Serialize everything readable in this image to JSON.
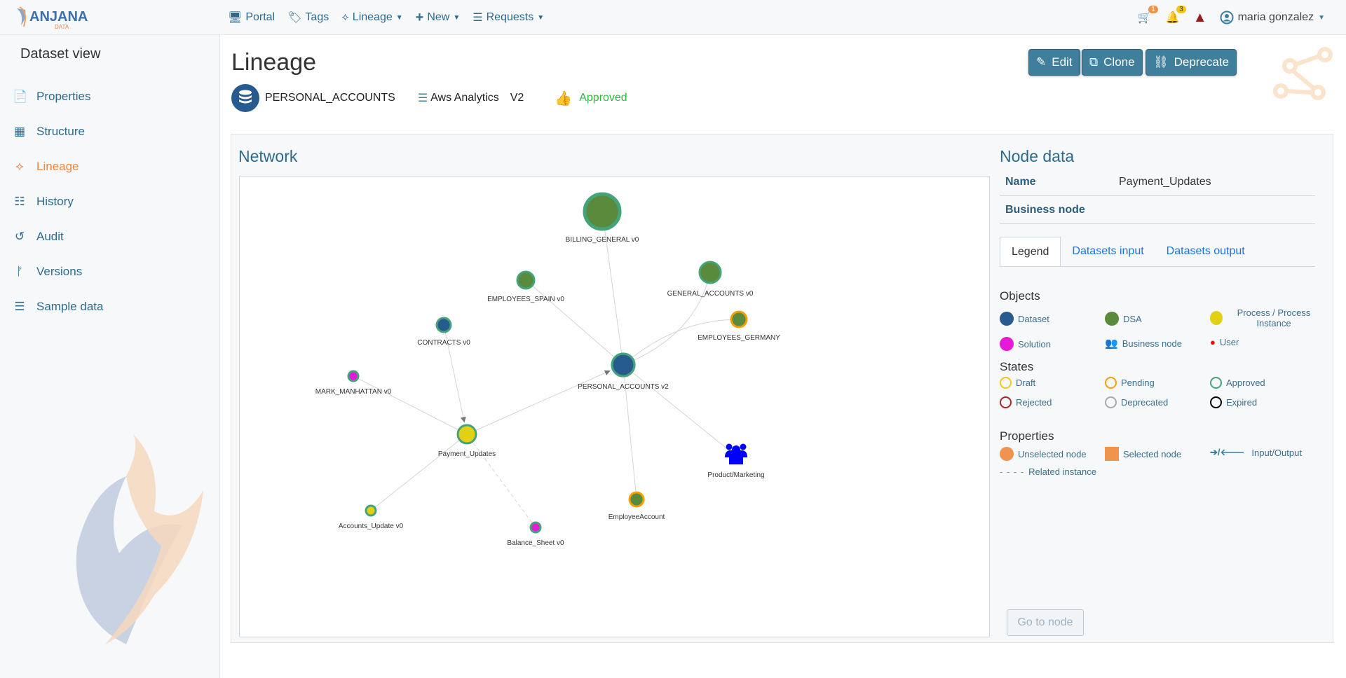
{
  "header": {
    "logo_text": "ANJANA DATA",
    "nav": [
      {
        "label": "Portal",
        "icon": "monitor-icon"
      },
      {
        "label": "Tags",
        "icon": "tags-icon"
      },
      {
        "label": "Lineage",
        "icon": "lineage-icon",
        "dropdown": true
      },
      {
        "label": "New",
        "icon": "plus-icon",
        "dropdown": true
      },
      {
        "label": "Requests",
        "icon": "requests-icon",
        "dropdown": true
      }
    ],
    "cart_count": "1",
    "notifications_count": "3",
    "user_name": "maria gonzalez"
  },
  "sidebar": {
    "title": "Dataset view",
    "items": [
      {
        "label": "Properties",
        "icon": "file-icon"
      },
      {
        "label": "Structure",
        "icon": "table-icon"
      },
      {
        "label": "Lineage",
        "icon": "lineage-icon",
        "active": true
      },
      {
        "label": "History",
        "icon": "list-icon"
      },
      {
        "label": "Audit",
        "icon": "history-icon"
      },
      {
        "label": "Versions",
        "icon": "branch-icon"
      },
      {
        "label": "Sample data",
        "icon": "list-numbered-icon"
      }
    ]
  },
  "page": {
    "title": "Lineage",
    "dataset_name": "PERSONAL_ACCOUNTS",
    "datasource": "Aws Analytics",
    "version": "V2",
    "status": "Approved",
    "buttons": {
      "edit": "Edit",
      "clone": "Clone",
      "deprecate": "Deprecate"
    }
  },
  "network": {
    "title": "Network",
    "nodes": [
      {
        "label": "BILLING_GENERAL v0",
        "type": "DSA",
        "state": "Approved"
      },
      {
        "label": "EMPLOYEES_SPAIN v0",
        "type": "DSA",
        "state": "Approved"
      },
      {
        "label": "GENERAL_ACCOUNTS v0",
        "type": "DSA",
        "state": "Approved"
      },
      {
        "label": "EMPLOYEES_GERMANY",
        "type": "DSA",
        "state": "Pending"
      },
      {
        "label": "CONTRACTS v0",
        "type": "Dataset",
        "state": "Approved"
      },
      {
        "label": "PERSONAL_ACCOUNTS v2",
        "type": "Dataset",
        "state": "Approved"
      },
      {
        "label": "MARK_MANHATTAN v0",
        "type": "Solution",
        "state": "Approved"
      },
      {
        "label": "Payment_Updates",
        "type": "Process",
        "state": "Approved"
      },
      {
        "label": "Product/Marketing",
        "type": "Business node"
      },
      {
        "label": "EmployeeAccount",
        "type": "DSA",
        "state": "Pending"
      },
      {
        "label": "Accounts_Update v0",
        "type": "Process",
        "state": "Approved"
      },
      {
        "label": "Balance_Sheet v0",
        "type": "Solution",
        "state": "Approved"
      }
    ]
  },
  "node_data": {
    "title": "Node data",
    "name_label": "Name",
    "name_value": "Payment_Updates",
    "business_node_label": "Business node",
    "tabs": [
      "Legend",
      "Datasets input",
      "Datasets output"
    ],
    "go_to_node": "Go to node"
  },
  "legend": {
    "objects_title": "Objects",
    "objects": [
      {
        "label": "Dataset",
        "color": "#275a8f"
      },
      {
        "label": "DSA",
        "color": "#5a8a3c"
      },
      {
        "label": "Process / Process Instance",
        "color": "#e2d015"
      },
      {
        "label": "Solution",
        "color": "#e619d8"
      },
      {
        "label": "Business node",
        "color": "#0000ff"
      },
      {
        "label": "User",
        "color": "#ff0000"
      }
    ],
    "states_title": "States",
    "states": [
      {
        "label": "Draft",
        "color": "#f5c518"
      },
      {
        "label": "Pending",
        "color": "#f59e0b"
      },
      {
        "label": "Approved",
        "color": "#45a37a"
      },
      {
        "label": "Rejected",
        "color": "#a52a2a"
      },
      {
        "label": "Deprecated",
        "color": "#aaaaaa"
      },
      {
        "label": "Expired",
        "color": "#000000"
      }
    ],
    "properties_title": "Properties",
    "properties": [
      "Unselected node",
      "Selected node",
      "Input/Output",
      "Related instance"
    ]
  }
}
